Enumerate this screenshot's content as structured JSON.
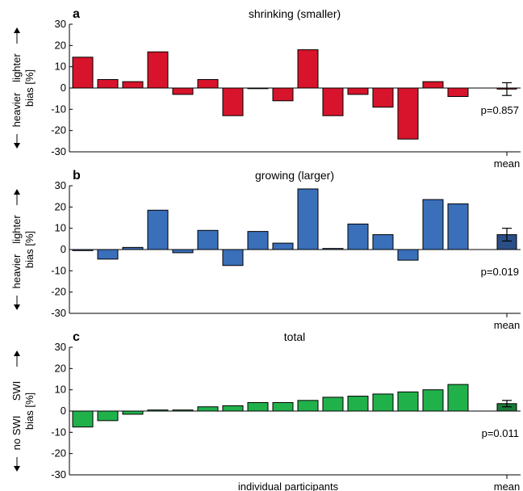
{
  "chart_data": [
    {
      "type": "bar",
      "panel_label": "a",
      "title": "shrinking (smaller)",
      "ylabel": "bias [%]",
      "direction_labels": {
        "up": "lighter",
        "down": "heavier"
      },
      "ylim": [
        -30,
        30
      ],
      "yticks": [
        -30,
        -20,
        -10,
        0,
        10,
        20,
        30
      ],
      "color": "#d7142b",
      "mean_color": "#d7142b",
      "participant_values": [
        14.5,
        4,
        3,
        17,
        -3,
        4,
        -13,
        0,
        -6,
        18,
        -13,
        -3,
        -9,
        -24,
        3,
        -4
      ],
      "mean": {
        "label": "mean",
        "value": -0.5,
        "error": 3
      },
      "p_value": "p=0.857"
    },
    {
      "type": "bar",
      "panel_label": "b",
      "title": "growing (larger)",
      "ylabel": "bias [%]",
      "direction_labels": {
        "up": "lighter",
        "down": "heavier"
      },
      "ylim": [
        -30,
        30
      ],
      "yticks": [
        -30,
        -20,
        -10,
        0,
        10,
        20,
        30
      ],
      "color": "#3a6fba",
      "mean_color": "#2a4f87",
      "participant_values": [
        -0.5,
        -4.5,
        1,
        18.5,
        -1.5,
        9,
        -7.5,
        8.5,
        3,
        28.5,
        0.5,
        12,
        7,
        -5,
        23.5,
        21.5
      ],
      "mean": {
        "label": "mean",
        "value": 7,
        "error": 3
      },
      "p_value": "p=0.019"
    },
    {
      "type": "bar",
      "panel_label": "c",
      "title": "total",
      "ylabel": "bias [%]",
      "direction_labels": {
        "up": "SWI",
        "down": "no SWI"
      },
      "ylim": [
        -30,
        30
      ],
      "yticks": [
        -30,
        -20,
        -10,
        0,
        10,
        20,
        30
      ],
      "color": "#21b14b",
      "mean_color": "#1a7a36",
      "participant_values": [
        -7.5,
        -4.5,
        -1.5,
        0.5,
        0.5,
        2,
        2.5,
        4,
        4,
        5,
        6.5,
        7,
        8,
        9,
        10,
        12.5
      ],
      "mean": {
        "label": "mean",
        "value": 3.5,
        "error": 1.5
      },
      "p_value": "p=0.011",
      "xlabel": "individual participants"
    }
  ]
}
